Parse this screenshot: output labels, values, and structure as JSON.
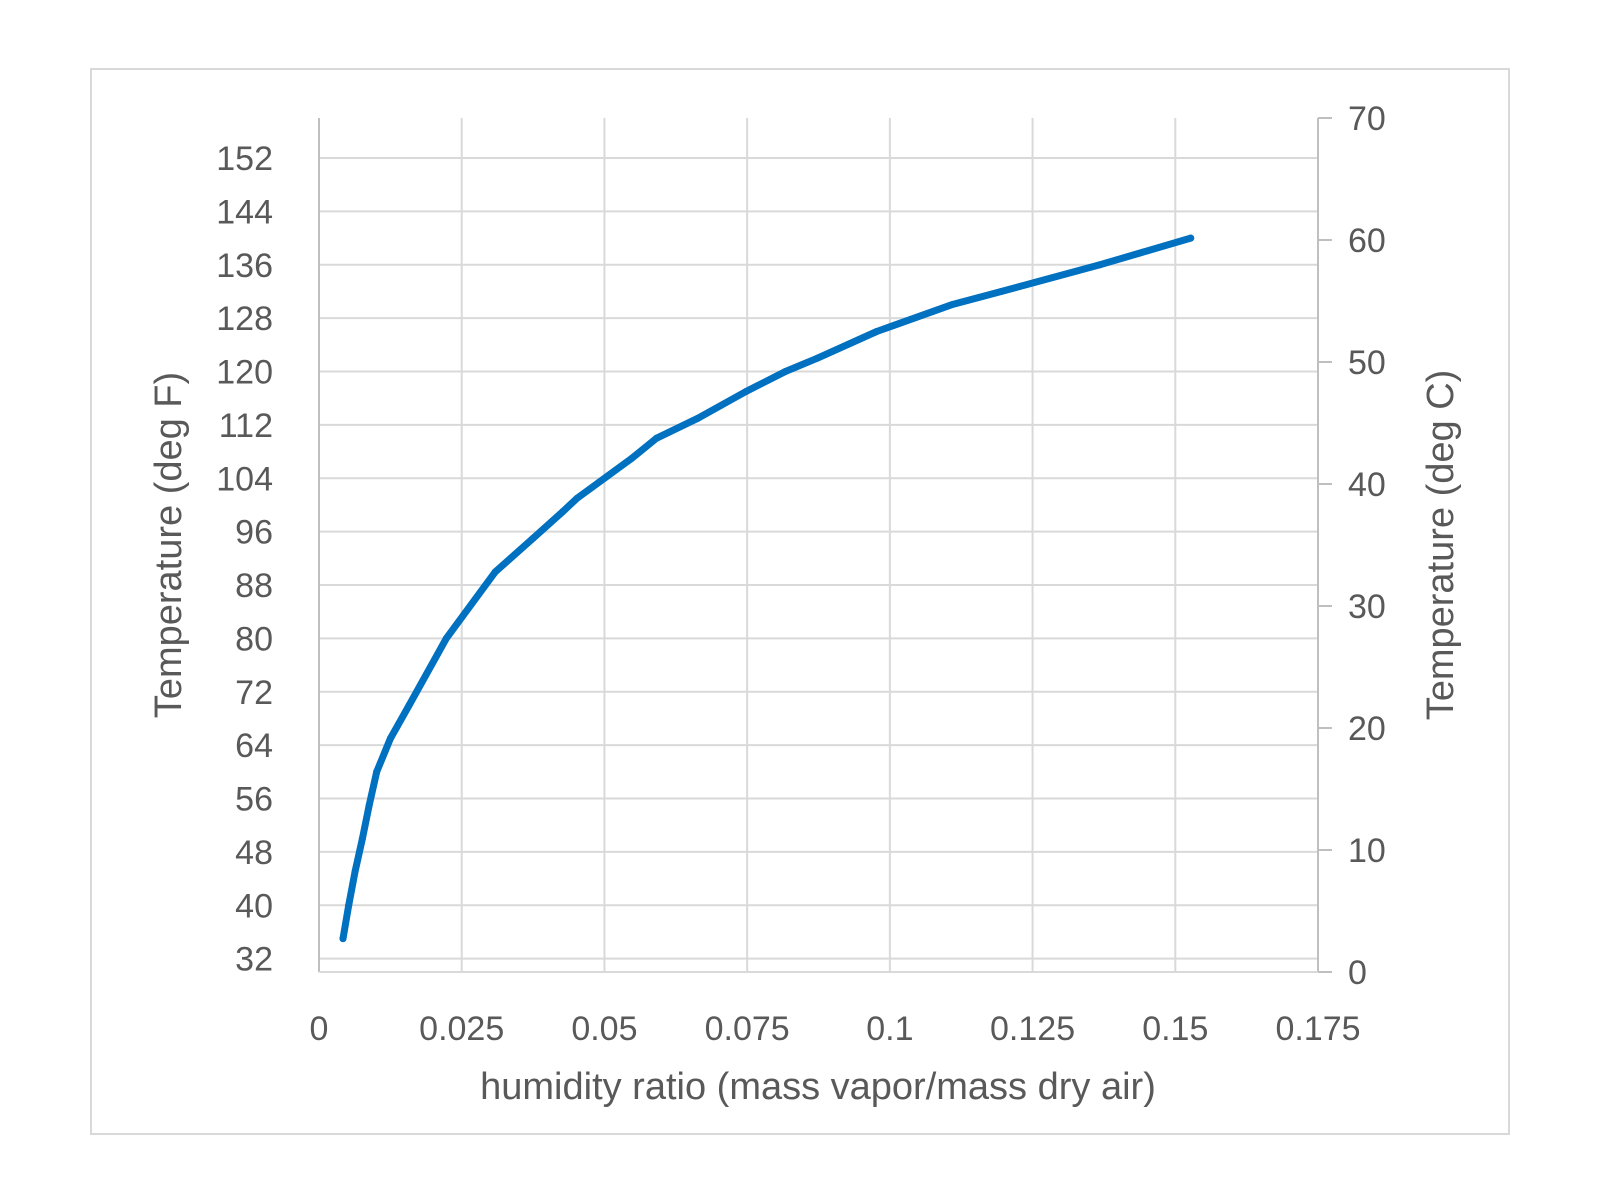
{
  "chart_data": {
    "type": "line",
    "xlabel": "humidity ratio (mass vapor/mass dry air)",
    "ylabel": "Temperature (deg F)",
    "ylabel_right": "Temperature (deg C)",
    "xlim": [
      0,
      0.175
    ],
    "ylim": [
      30,
      158
    ],
    "ylim_right": [
      0,
      70
    ],
    "x_ticks": [
      "0",
      "0.025",
      "0.05",
      "0.075",
      "0.1",
      "0.125",
      "0.15",
      "0.175"
    ],
    "y_ticks": [
      "32",
      "40",
      "48",
      "56",
      "64",
      "72",
      "80",
      "88",
      "96",
      "104",
      "112",
      "120",
      "128",
      "136",
      "144",
      "152"
    ],
    "y_ticks_right": [
      "0",
      "10",
      "20",
      "30",
      "40",
      "50",
      "60",
      "70"
    ],
    "grid": true,
    "legend": "none",
    "series": [
      {
        "color": "#0070C0",
        "x": [
          0.0042,
          0.0052,
          0.0063,
          0.0076,
          0.0088,
          0.0101,
          0.0125,
          0.0158,
          0.0223,
          0.0309,
          0.0375,
          0.0427,
          0.0452,
          0.0548,
          0.0591,
          0.0664,
          0.0748,
          0.0817,
          0.0873,
          0.0977,
          0.1108,
          0.1195,
          0.1368,
          0.1527
        ],
        "y": [
          35,
          40,
          45,
          50,
          55,
          60,
          65,
          70,
          80,
          90,
          95,
          99,
          101,
          107,
          110,
          113,
          117,
          120,
          122,
          126,
          130,
          132,
          136,
          140
        ]
      }
    ]
  }
}
